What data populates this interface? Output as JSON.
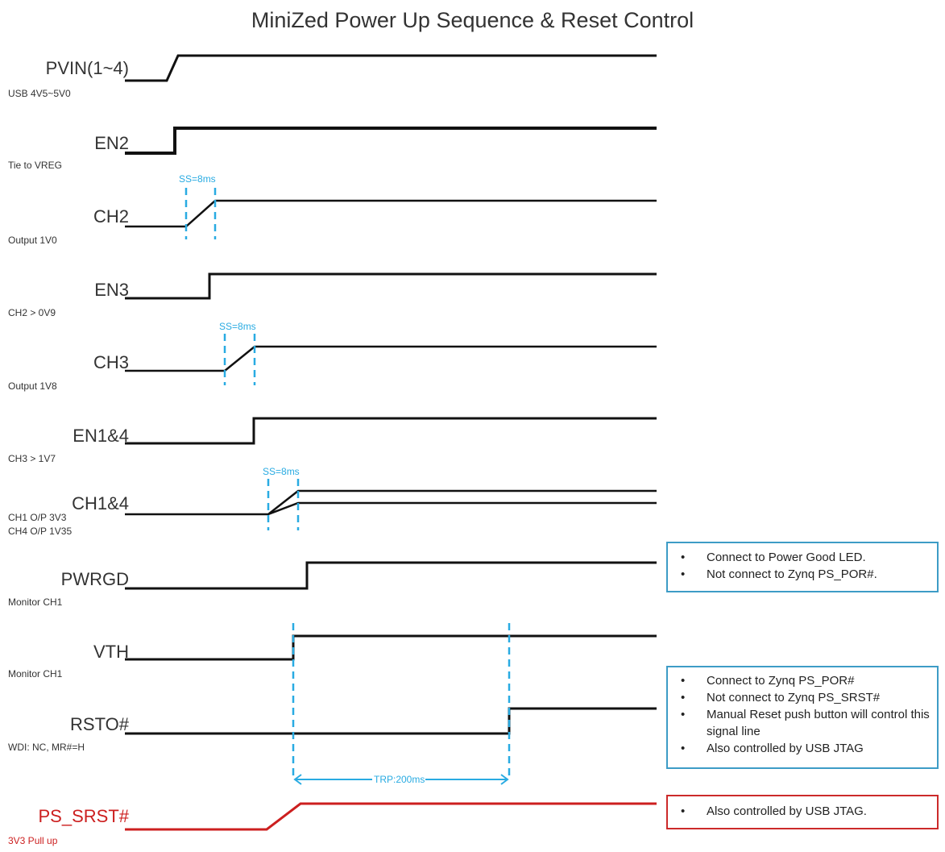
{
  "title": "MiniZed Power Up Sequence & Reset Control",
  "signals": [
    {
      "id": "pvin",
      "name": "PVIN(1~4)",
      "sub": [
        "USB 4V5~5V0"
      ]
    },
    {
      "id": "en2",
      "name": "EN2",
      "sub": [
        "Tie to VREG"
      ]
    },
    {
      "id": "ch2",
      "name": "CH2",
      "sub": [
        "Output 1V0"
      ]
    },
    {
      "id": "en3",
      "name": "EN3",
      "sub": [
        "CH2 > 0V9"
      ]
    },
    {
      "id": "ch3",
      "name": "CH3",
      "sub": [
        "Output 1V8"
      ]
    },
    {
      "id": "en14",
      "name": "EN1&4",
      "sub": [
        "CH3 > 1V7"
      ]
    },
    {
      "id": "ch14",
      "name": "CH1&4",
      "sub": [
        "CH1 O/P 3V3",
        "CH4 O/P 1V35"
      ]
    },
    {
      "id": "pwrgd",
      "name": "PWRGD",
      "sub": [
        "Monitor CH1"
      ]
    },
    {
      "id": "vth",
      "name": "VTH",
      "sub": [
        "Monitor CH1"
      ]
    },
    {
      "id": "rsto",
      "name": "RSTO#",
      "sub": [
        "WDI: NC, MR#=H"
      ]
    },
    {
      "id": "pssrst",
      "name": "PS_SRST#",
      "sub": [
        "3V3 Pull up"
      ]
    }
  ],
  "annotations": {
    "ss_ch2": "SS=8ms",
    "ss_ch3": "SS=8ms",
    "ss_ch14": "SS=8ms",
    "trp": "TRP:200ms"
  },
  "notes": {
    "pwrgd": [
      "Connect to Power Good LED.",
      "Not connect to Zynq PS_POR#."
    ],
    "rsto": [
      "Connect to Zynq PS_POR#",
      "Not connect to Zynq PS_SRST#",
      "Manual Reset push button will control this signal line",
      "Also controlled by USB JTAG"
    ],
    "pssrst": [
      "Also controlled by USB JTAG."
    ]
  },
  "colors": {
    "trace": "#111111",
    "accent_blue": "#29abe2",
    "alert_red": "#cc1f1f",
    "box_blue": "#3d9cc6",
    "box_red": "#cc2a2a"
  }
}
